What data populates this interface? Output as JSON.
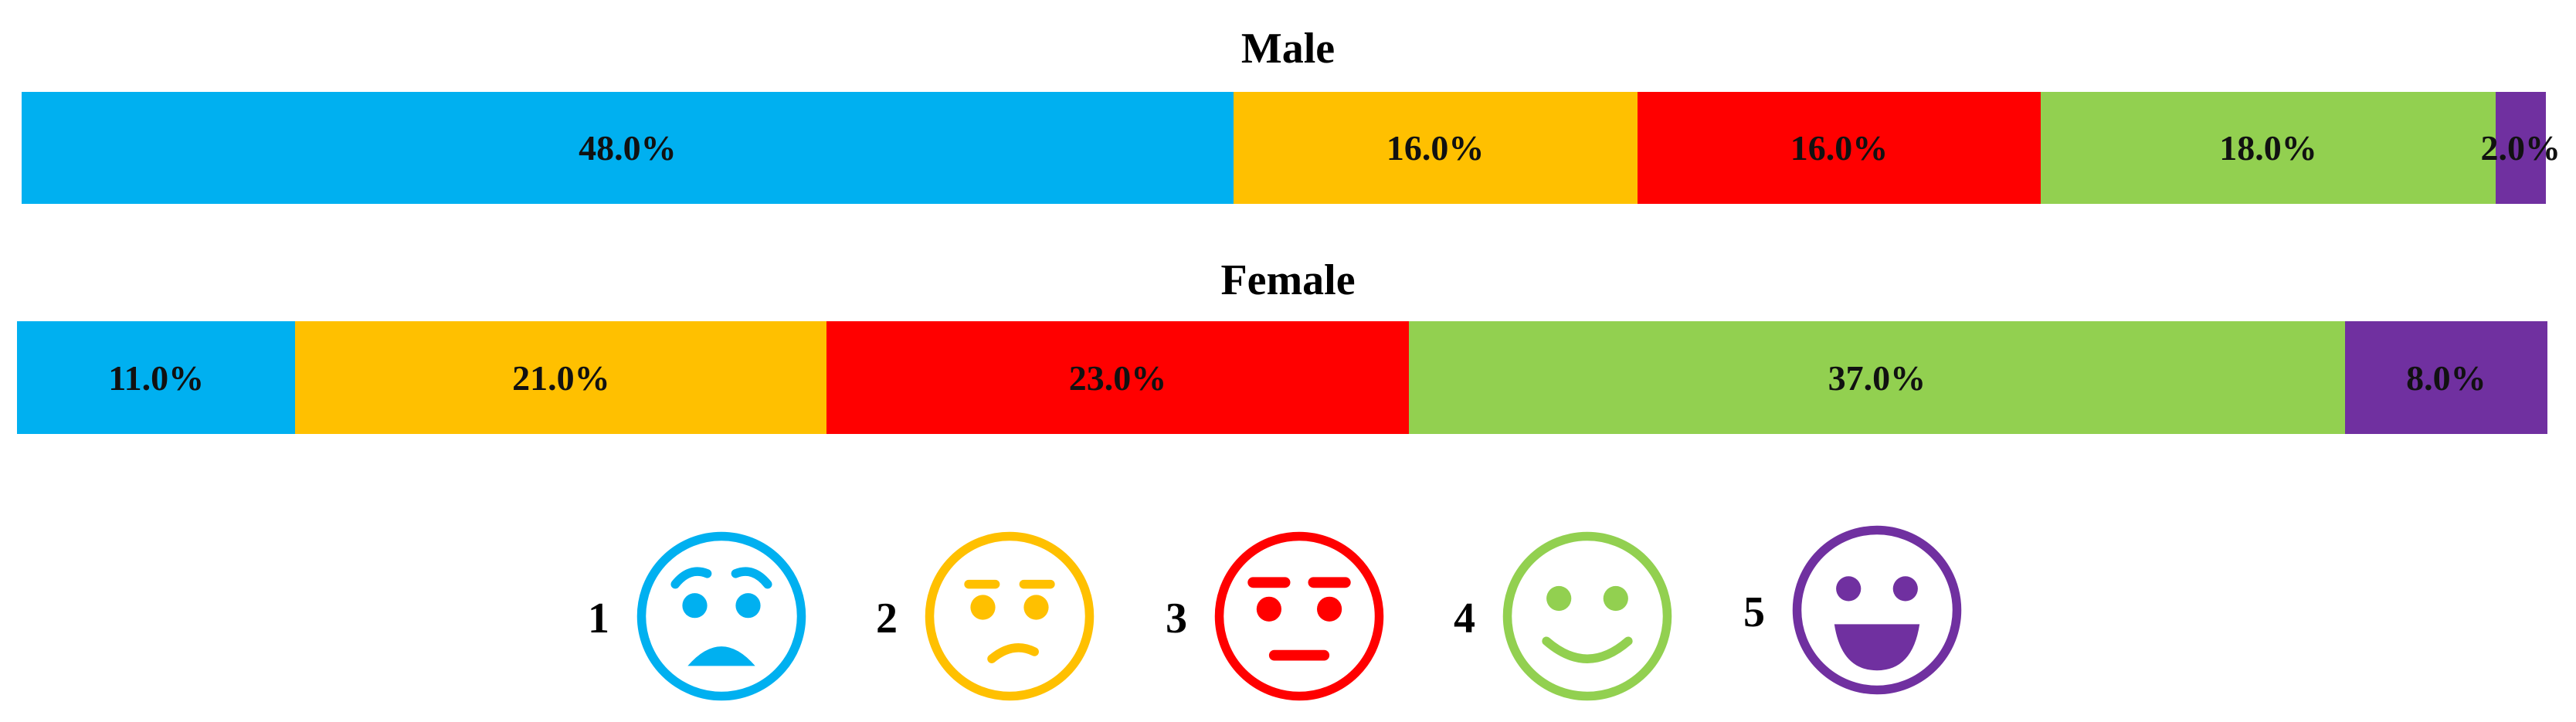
{
  "chart_data": {
    "type": "bar",
    "orientation": "horizontal-stacked-100",
    "categories": [
      "1",
      "2",
      "3",
      "4",
      "5"
    ],
    "colors": [
      "#00b0f0",
      "#ffc000",
      "#ff0000",
      "#92d050",
      "#7030a0"
    ],
    "series": [
      {
        "name": "Male",
        "values": [
          48.0,
          16.0,
          16.0,
          18.0,
          2.0
        ],
        "labels": [
          "48.0%",
          "16.0%",
          "16.0%",
          "18.0%",
          "2.0%"
        ]
      },
      {
        "name": "Female",
        "values": [
          11.0,
          21.0,
          23.0,
          37.0,
          8.0
        ],
        "labels": [
          "11.0%",
          "21.0%",
          "23.0%",
          "37.0%",
          "8.0%"
        ]
      }
    ],
    "legend": {
      "placement": "bottom",
      "items": [
        {
          "label": "1",
          "icon": "worried-face-icon",
          "color": "#00b0f0"
        },
        {
          "label": "2",
          "icon": "confused-face-icon",
          "color": "#ffc000"
        },
        {
          "label": "3",
          "icon": "neutral-face-icon",
          "color": "#ff0000"
        },
        {
          "label": "4",
          "icon": "smiling-face-icon",
          "color": "#92d050"
        },
        {
          "label": "5",
          "icon": "grinning-face-icon",
          "color": "#7030a0"
        }
      ]
    },
    "xlim": [
      0,
      100
    ],
    "grid": false
  }
}
